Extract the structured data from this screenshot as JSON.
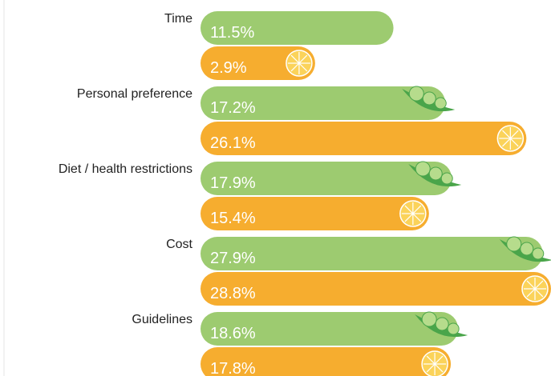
{
  "chart_data": {
    "type": "bar",
    "orientation": "horizontal",
    "categories": [
      "Time",
      "Personal preference",
      "Diet / health restrictions",
      "Cost",
      "Guidelines"
    ],
    "series": [
      {
        "color": "#9dcb70",
        "values": [
          11.5,
          17.2,
          17.9,
          27.9,
          18.6
        ],
        "value_labels": [
          "11.5%",
          "17.2%",
          "17.9%",
          "27.9%",
          "18.6%"
        ]
      },
      {
        "color": "#f6ad2f",
        "values": [
          2.9,
          26.1,
          15.4,
          28.8,
          17.8
        ],
        "value_labels": [
          "2.9%",
          "26.1%",
          "15.4%",
          "28.8%",
          "17.8%"
        ]
      }
    ]
  }
}
